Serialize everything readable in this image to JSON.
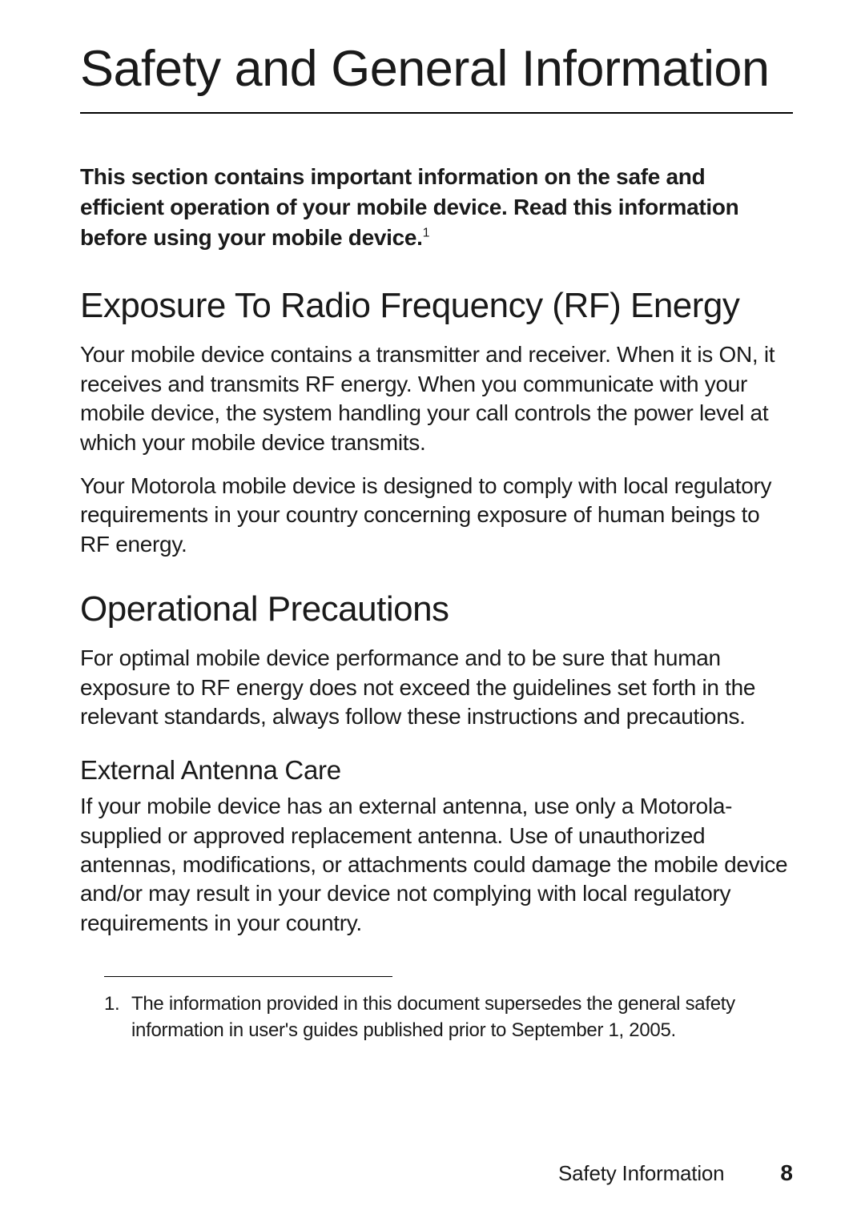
{
  "title": "Safety and General Information",
  "intro_text": "This section contains important information on the safe and efficient operation of your mobile device. Read this information before using your mobile device.",
  "intro_footnote_marker": "1",
  "sections": {
    "rf": {
      "heading": "Exposure To Radio Frequency (RF) Energy",
      "p1": "Your mobile device contains a transmitter and receiver. When it is ON, it receives and transmits RF energy. When you communicate with your mobile device, the system handling your call controls the power level at which your mobile device transmits.",
      "p2": "Your Motorola mobile device is designed to comply with local regulatory requirements in your country concerning exposure of human beings to RF energy."
    },
    "precautions": {
      "heading": "Operational Precautions",
      "p1": "For optimal mobile device performance and to be sure that human exposure to RF energy does not exceed the guidelines set forth in the relevant standards, always follow these instructions and precautions.",
      "sub": {
        "heading": "External Antenna Care",
        "p1": "If your mobile device has an external antenna, use only a Motorola-supplied or approved replacement antenna. Use of unauthorized antennas, modifications, or attachments could damage the mobile device and/or may result in your device not complying with local regulatory requirements in your country."
      }
    }
  },
  "footnote": {
    "num": "1.",
    "text": "The information provided in this document supersedes the general safety information in user's guides published prior to September 1, 2005."
  },
  "footer": {
    "label": "Safety Information",
    "page": "8"
  }
}
